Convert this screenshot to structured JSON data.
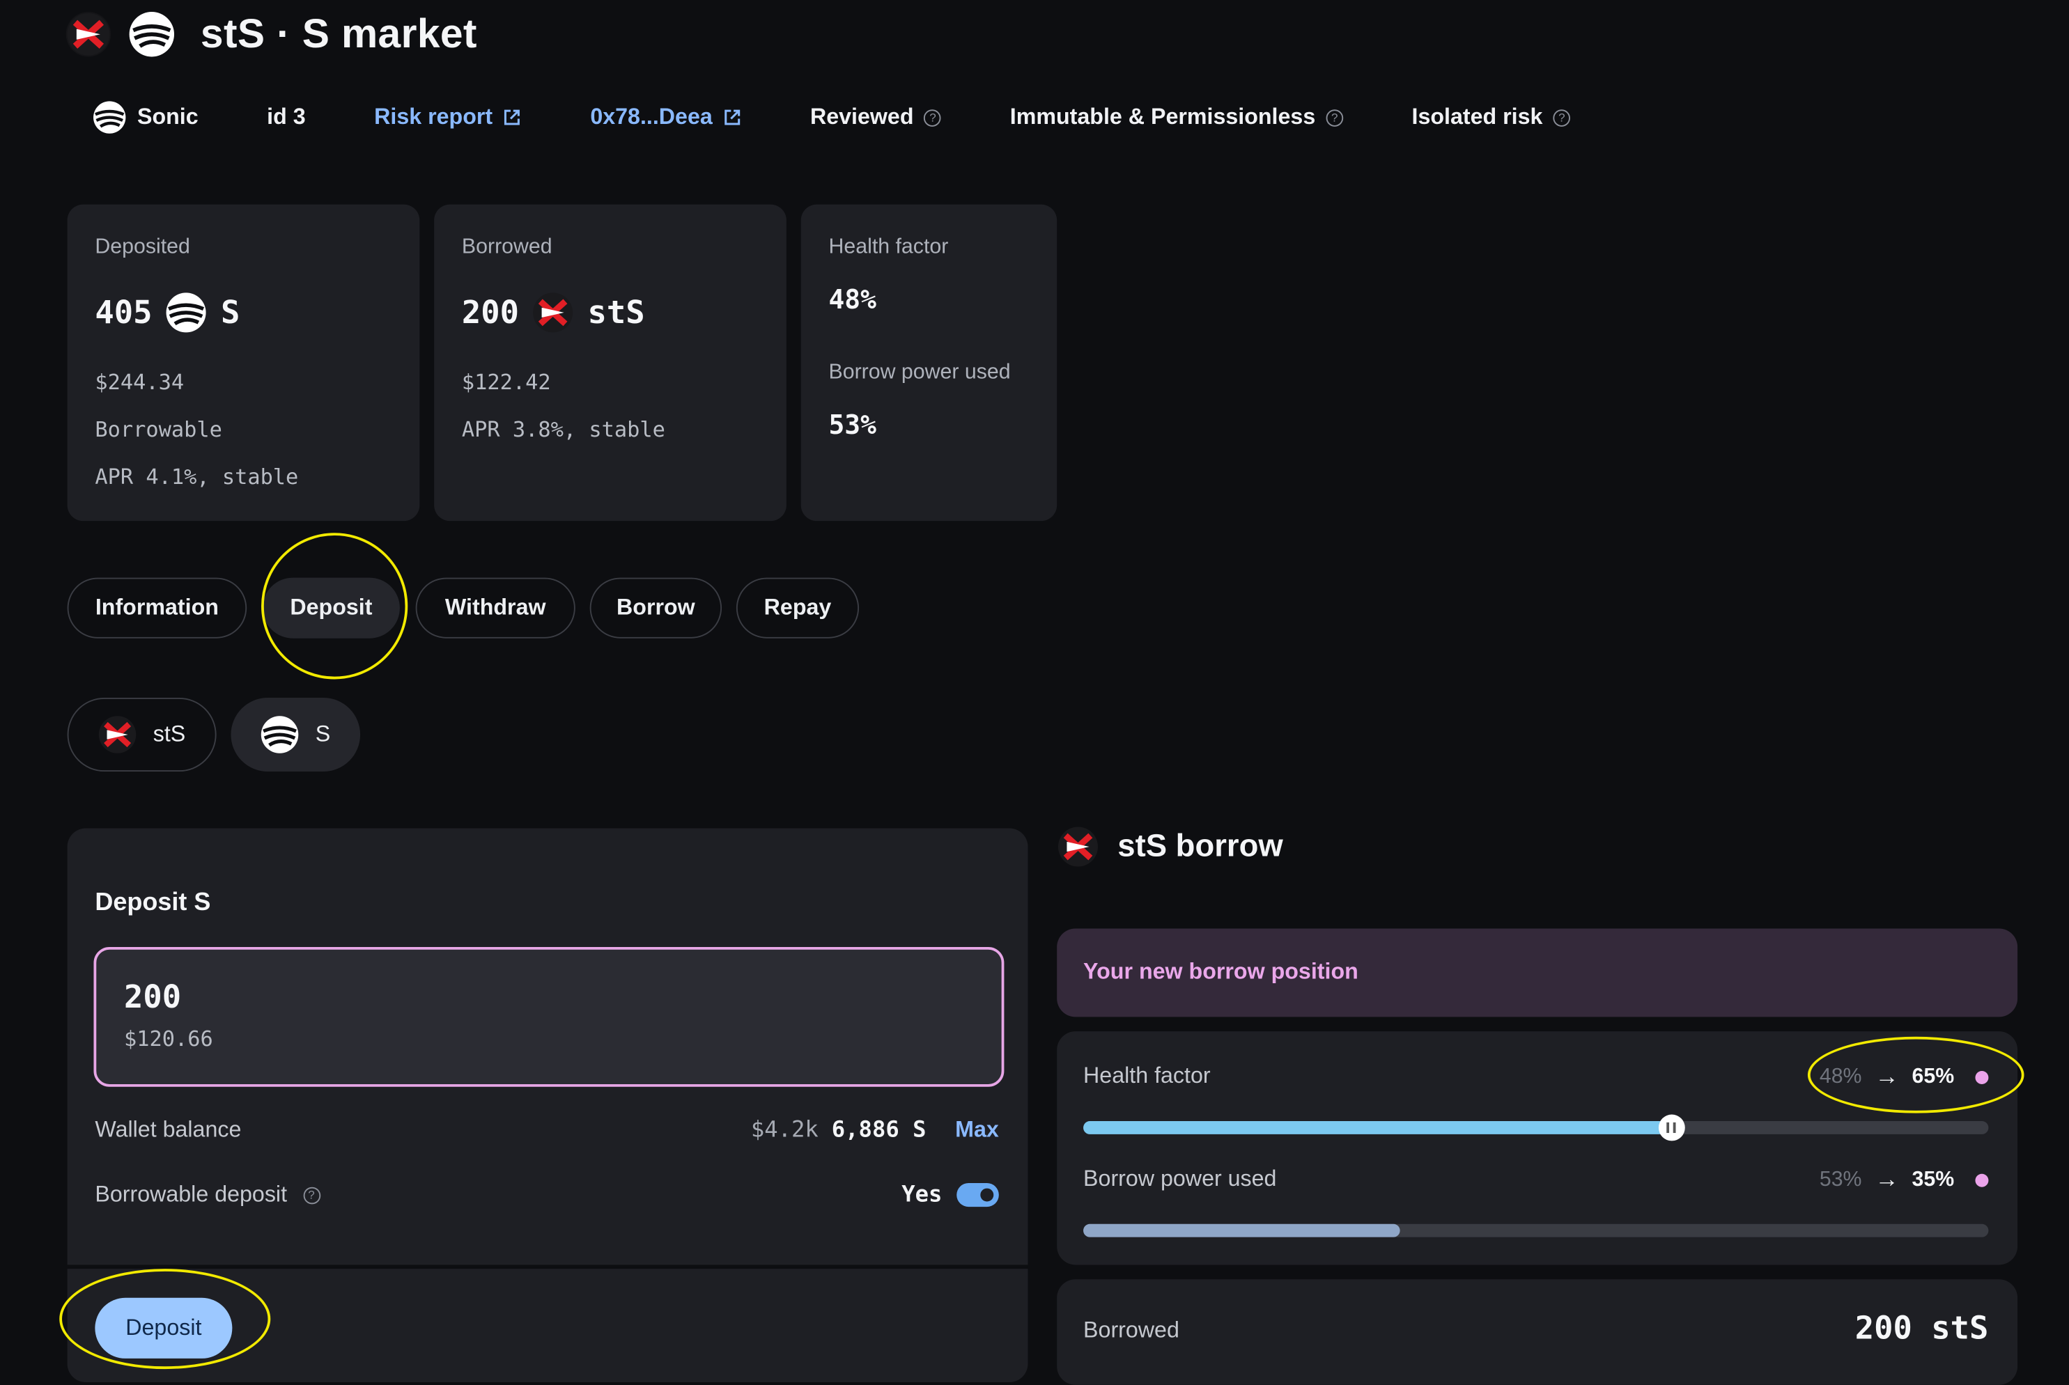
{
  "header": {
    "title": "stS · S market"
  },
  "meta": {
    "network": "Sonic",
    "id": "id 3",
    "risk_report": "Risk report",
    "address": "0x78...Deea",
    "reviewed": "Reviewed",
    "immutable": "Immutable & Permissionless",
    "isolated": "Isolated risk"
  },
  "stats": {
    "deposited": {
      "label": "Deposited",
      "amount": "405",
      "symbol": "S",
      "usd": "$244.34",
      "note": "Borrowable",
      "apr": "APR 4.1%, stable"
    },
    "borrowed": {
      "label": "Borrowed",
      "amount": "200",
      "symbol": "stS",
      "usd": "$122.42",
      "apr": "APR 3.8%, stable"
    },
    "health": {
      "label": "Health factor",
      "value": "48%",
      "bp_label": "Borrow power used",
      "bp_value": "53%"
    }
  },
  "tabs": [
    "Information",
    "Deposit",
    "Withdraw",
    "Borrow",
    "Repay"
  ],
  "assets": [
    "stS",
    "S"
  ],
  "deposit_panel": {
    "title": "Deposit S",
    "amount": "200",
    "amount_usd": "$120.66",
    "wallet_label": "Wallet balance",
    "wallet_usd": "$4.2k",
    "wallet_amount": "6,886 S",
    "max": "Max",
    "borrowable_label": "Borrowable deposit",
    "borrowable_value": "Yes",
    "button": "Deposit"
  },
  "borrow_side": {
    "title": "stS borrow",
    "banner": "Your new borrow position",
    "health_label": "Health factor",
    "health_from": "48%",
    "health_to": "65%",
    "health_level": 0.65,
    "bp_label": "Borrow power used",
    "bp_from": "53%",
    "bp_to": "35%",
    "bp_level": 0.35,
    "borrowed_label": "Borrowed",
    "borrowed_value": "200 stS"
  },
  "colors": {
    "accent_blue": "#9cc8ff",
    "link": "#8ab9ff",
    "highlight": "#f2ea00",
    "pink": "#e7a6e6",
    "health_fill": "#7cc9f0",
    "bp_fill": "#8fa6c7"
  },
  "icons": [
    "sts-coin-icon",
    "sonic-coin-icon",
    "external-link-icon",
    "help-icon",
    "arrow-right-icon",
    "toggle-on-icon"
  ]
}
